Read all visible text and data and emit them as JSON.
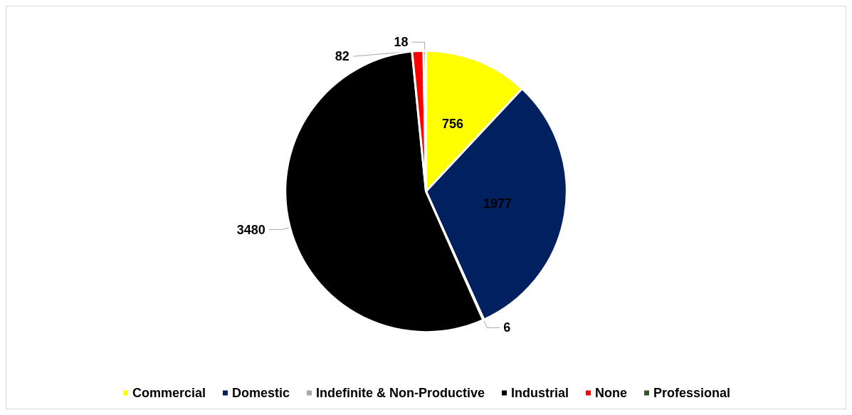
{
  "chart_data": {
    "type": "pie",
    "categories": [
      "Commercial",
      "Domestic",
      "Indefinite & Non-Productive",
      "Industrial",
      "None",
      "Professional"
    ],
    "values": [
      756,
      1977,
      6,
      3480,
      82,
      18
    ],
    "colors": [
      "#ffff00",
      "#002060",
      "#a6a6a6",
      "#000000",
      "#ff0000",
      "#375623"
    ],
    "data_labels": true,
    "legend": "bottom"
  }
}
